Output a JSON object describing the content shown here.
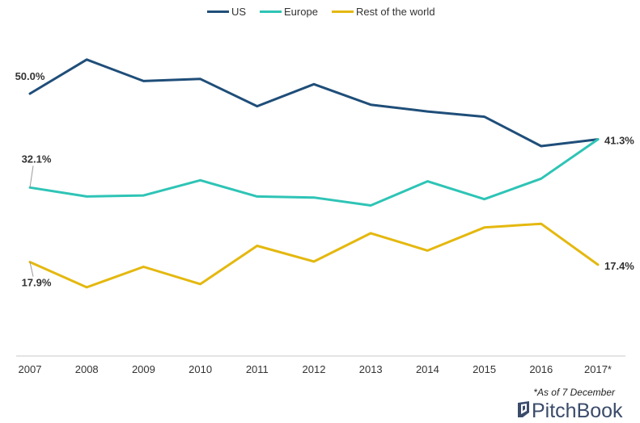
{
  "chart_data": {
    "type": "line",
    "categories": [
      "2007",
      "2008",
      "2009",
      "2010",
      "2011",
      "2012",
      "2013",
      "2014",
      "2015",
      "2016",
      "2017*"
    ],
    "series": [
      {
        "name": "US",
        "color": "#1f4e79",
        "values": [
          50.0,
          56.5,
          52.4,
          52.8,
          47.6,
          51.8,
          47.9,
          46.6,
          45.6,
          40.0,
          41.3
        ]
      },
      {
        "name": "Europe",
        "color": "#2ec4b6",
        "values": [
          32.1,
          30.4,
          30.6,
          33.5,
          30.4,
          30.2,
          28.7,
          33.3,
          29.9,
          33.8,
          41.3
        ]
      },
      {
        "name": "Rest of the world",
        "color": "#e4b80f",
        "values": [
          17.9,
          13.1,
          17.0,
          13.7,
          21.0,
          18.0,
          23.4,
          20.1,
          24.5,
          25.2,
          17.4
        ]
      }
    ],
    "data_labels": [
      {
        "series": "US",
        "index": 0,
        "text": "50.0%"
      },
      {
        "series": "Europe",
        "index": 0,
        "text": "32.1%"
      },
      {
        "series": "Rest of the world",
        "index": 0,
        "text": "17.9%"
      },
      {
        "series": "US",
        "index": 10,
        "text": "41.3%"
      },
      {
        "series": "Rest of the world",
        "index": 10,
        "text": "17.4%"
      }
    ],
    "ylim": [
      0,
      65
    ],
    "grid": false,
    "legend": "top-center",
    "title": "",
    "xlabel": "",
    "ylabel": ""
  },
  "footnote": "*As of 7 December",
  "brand": {
    "name": "PitchBook",
    "icon": "pitchbook-logo-icon"
  }
}
